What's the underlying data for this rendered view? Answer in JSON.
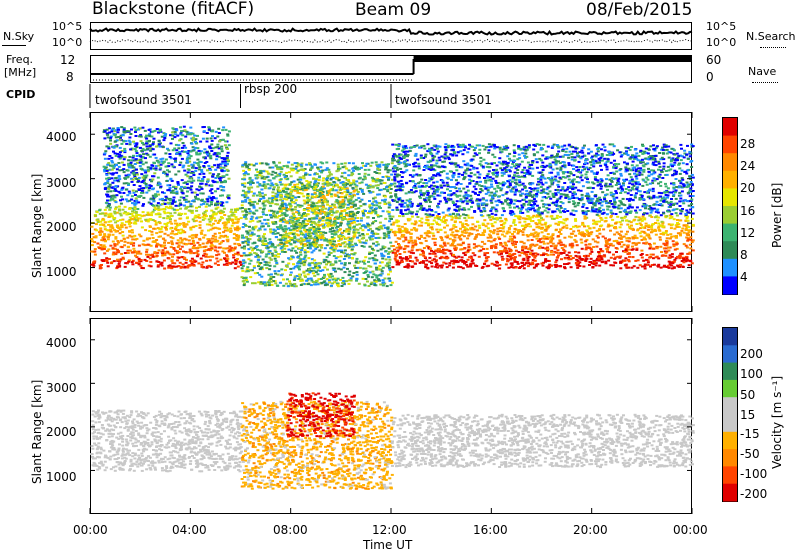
{
  "header": {
    "station": "Blackstone (fitACF)",
    "beam": "Beam 09",
    "date": "08/Feb/2015"
  },
  "panels": {
    "nsky": {
      "left_label": "N.Sky",
      "ticks_left": [
        "10^5",
        "10^0"
      ],
      "ticks_right": [
        "10^5",
        "10^0"
      ],
      "right_label": "N.Search"
    },
    "freq": {
      "left_label_1": "Freq.",
      "left_label_2": "[MHz]",
      "ticks_left": [
        "12",
        "8"
      ],
      "ticks_right": [
        "60",
        "0"
      ],
      "right_label": "Nave"
    },
    "cpid": {
      "label": "CPID",
      "segments": [
        {
          "name": "twofsound 3501",
          "start": 0.0,
          "end": 6.0
        },
        {
          "name": "rbsp 200",
          "start": 6.0,
          "end": 12.0
        },
        {
          "name": "twofsound 3501",
          "start": 12.0,
          "end": 24.0
        }
      ]
    }
  },
  "chart_data": [
    {
      "type": "heatmap",
      "title": "",
      "xlabel": "",
      "ylabel": "Slant Range [km]",
      "xlim": [
        0,
        24
      ],
      "ylim": [
        0,
        4500
      ],
      "yticks": [
        "1000",
        "2000",
        "3000",
        "4000"
      ],
      "colorbar": {
        "label": "Power [dB]",
        "ticks": [
          "28",
          "24",
          "20",
          "16",
          "12",
          "8",
          "4"
        ],
        "colors": [
          "#e00000",
          "#ff4400",
          "#ff8800",
          "#ffb000",
          "#e6e600",
          "#9acd32",
          "#3cb371",
          "#2e8b57",
          "#1e90ff",
          "#0000ff"
        ]
      },
      "scatter_regions": [
        {
          "t0": 0.0,
          "t1": 6.0,
          "r0": 1000,
          "r1": 2400,
          "value": 20
        },
        {
          "t0": 0.5,
          "t1": 5.5,
          "r0": 2400,
          "r1": 4200,
          "value": 6
        },
        {
          "t0": 6.0,
          "t1": 12.0,
          "r0": 600,
          "r1": 3400,
          "value": 10
        },
        {
          "t0": 7.5,
          "t1": 10.5,
          "r0": 1500,
          "r1": 2900,
          "value": 14
        },
        {
          "t0": 12.0,
          "t1": 24.0,
          "r0": 1000,
          "r1": 2200,
          "value": 22
        },
        {
          "t0": 12.0,
          "t1": 24.0,
          "r0": 2200,
          "r1": 3800,
          "value": 5
        }
      ]
    },
    {
      "type": "heatmap",
      "title": "",
      "xlabel": "Time UT",
      "ylabel": "Slant Range [km]",
      "xlim": [
        0,
        24
      ],
      "ylim": [
        0,
        4500
      ],
      "yticks": [
        "1000",
        "2000",
        "3000",
        "4000"
      ],
      "xticks": [
        "00:00",
        "04:00",
        "08:00",
        "12:00",
        "16:00",
        "20:00",
        "00:00"
      ],
      "colorbar": {
        "label": "Velocity [m s⁻¹]",
        "ticks": [
          "200",
          "100",
          "50",
          "15",
          "-15",
          "-50",
          "-100",
          "-200"
        ],
        "colors": [
          "#1a3a9c",
          "#2a6bd1",
          "#2e8b57",
          "#66cc33",
          "#c8c8c8",
          "#c8c8c8",
          "#ffb000",
          "#ff8800",
          "#ff4400",
          "#e00000"
        ]
      },
      "scatter_regions": [
        {
          "t0": 0.0,
          "t1": 6.0,
          "r0": 1000,
          "r1": 2400,
          "value": 0
        },
        {
          "t0": 6.0,
          "t1": 12.0,
          "r0": 600,
          "r1": 2600,
          "value": -60
        },
        {
          "t0": 7.8,
          "t1": 10.5,
          "r0": 1800,
          "r1": 2800,
          "value": -180
        },
        {
          "t0": 12.0,
          "t1": 24.0,
          "r0": 1100,
          "r1": 2300,
          "value": 0
        }
      ]
    }
  ],
  "time_axis_label": "Time UT"
}
